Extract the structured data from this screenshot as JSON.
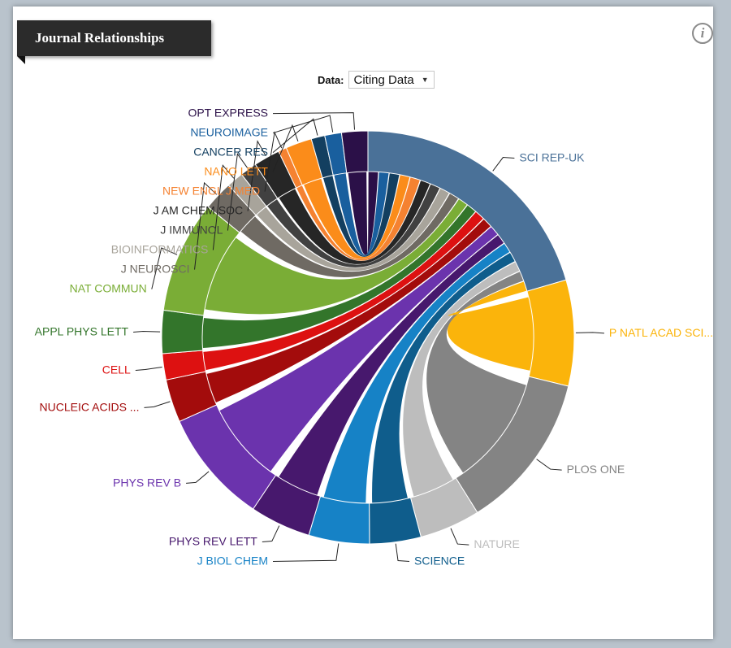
{
  "panel": {
    "title": "Journal Relationships",
    "info_icon": "i",
    "data_label": "Data:",
    "data_select_value": "Citing Data"
  },
  "chart_data": {
    "type": "chord",
    "title": "Journal Relationships",
    "focus": "SCI REP-UK",
    "segments": [
      {
        "name": "SCI REP-UK",
        "value": 25.0,
        "color": "#4a7198"
      },
      {
        "name": "P NATL ACAD SCI...",
        "value": 10.1,
        "color": "#fbb40b"
      },
      {
        "name": "PLOS ONE",
        "value": 15.0,
        "color": "#848484"
      },
      {
        "name": "NATURE",
        "value": 5.8,
        "color": "#bdbdbd"
      },
      {
        "name": "SCIENCE",
        "value": 4.9,
        "color": "#0f5d8c"
      },
      {
        "name": "J BIOL CHEM",
        "value": 5.8,
        "color": "#1682c6"
      },
      {
        "name": "PHYS REV LETT",
        "value": 5.8,
        "color": "#47186d"
      },
      {
        "name": "PHYS REV B",
        "value": 10.9,
        "color": "#6b33ad"
      },
      {
        "name": "NUCLEIC ACIDS ...",
        "value": 4.1,
        "color": "#a30c0c"
      },
      {
        "name": "CELL",
        "value": 2.5,
        "color": "#dd1111"
      },
      {
        "name": "APPL PHYS LETT",
        "value": 4.1,
        "color": "#33752b"
      },
      {
        "name": "NAT COMMUN",
        "value": 10.7,
        "color": "#7aad36"
      },
      {
        "name": "J NEUROSCI",
        "value": 2.8,
        "color": "#6f6a63"
      },
      {
        "name": "BIOINFORMATICS",
        "value": 1.6,
        "color": "#a8a49b"
      },
      {
        "name": "J IMMUNOL",
        "value": 1.6,
        "color": "#414141"
      },
      {
        "name": "J AM CHEM SOC",
        "value": 2.5,
        "color": "#262626"
      },
      {
        "name": "NEW ENGL J MED",
        "value": 0.8,
        "color": "#f58231"
      },
      {
        "name": "NANO LETT",
        "value": 2.5,
        "color": "#fb8c1a"
      },
      {
        "name": "CANCER RES",
        "value": 1.3,
        "color": "#133f60"
      },
      {
        "name": "NEUROIMAGE",
        "value": 1.6,
        "color": "#195f9e"
      },
      {
        "name": "OPT EXPRESS",
        "value": 2.5,
        "color": "#2b1048"
      }
    ]
  }
}
